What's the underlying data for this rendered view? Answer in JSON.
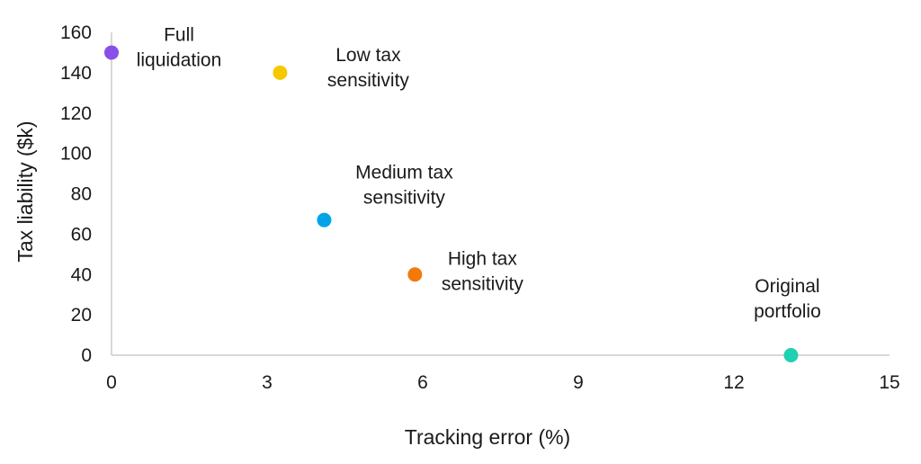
{
  "chart_data": {
    "type": "scatter",
    "title": "",
    "xlabel": "Tracking error (%)",
    "ylabel": "Tax liability ($k)",
    "xlim": [
      0,
      15
    ],
    "ylim": [
      0,
      160
    ],
    "xticks": [
      "0",
      "3",
      "6",
      "9",
      "12",
      "15"
    ],
    "yticks": [
      "0",
      "20",
      "40",
      "60",
      "80",
      "100",
      "120",
      "140",
      "160"
    ],
    "grid": false,
    "legend": "none",
    "points": [
      {
        "label_lines": [
          "Full",
          "liquidation"
        ],
        "x": 0,
        "y": 150,
        "color": "#8a4fe8"
      },
      {
        "label_lines": [
          "Low tax",
          "sensitivity"
        ],
        "x": 3.25,
        "y": 140,
        "color": "#f5c800"
      },
      {
        "label_lines": [
          "Medium tax",
          "sensitivity"
        ],
        "x": 4.1,
        "y": 67,
        "color": "#00a3e8"
      },
      {
        "label_lines": [
          "High tax",
          "sensitivity"
        ],
        "x": 5.85,
        "y": 40,
        "color": "#f27a0a"
      },
      {
        "label_lines": [
          "Original",
          "portfolio"
        ],
        "x": 13.1,
        "y": 0,
        "color": "#1fd1b3"
      }
    ]
  }
}
